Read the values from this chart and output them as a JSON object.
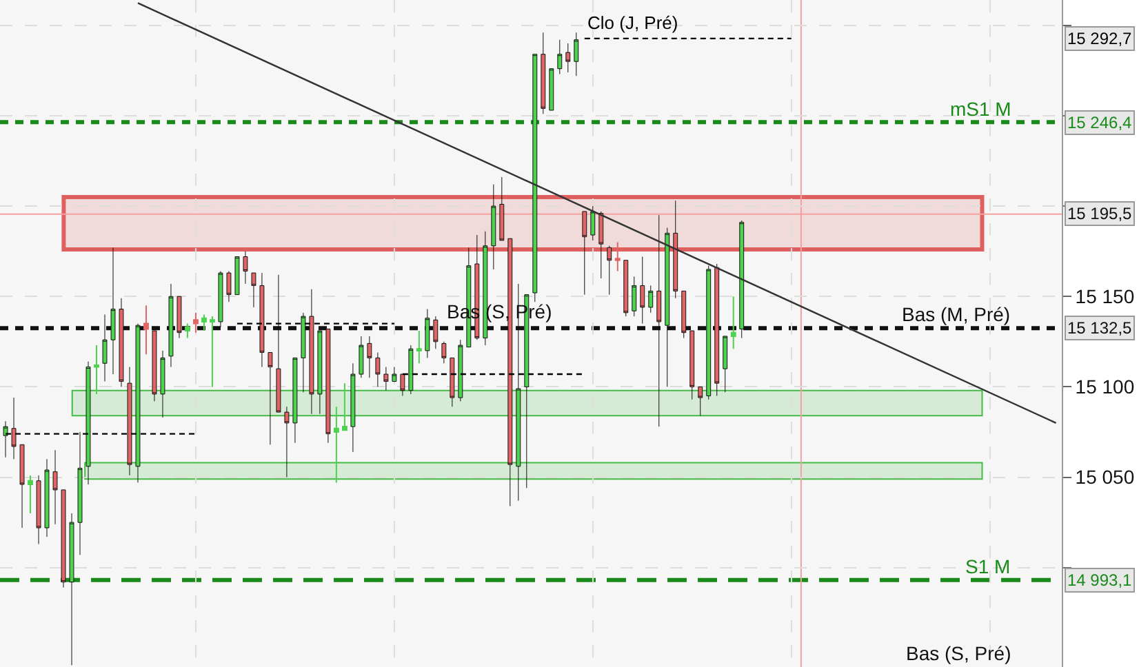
{
  "chart_data": {
    "type": "candlestick",
    "categories": [
      null,
      null,
      null,
      null,
      null,
      null,
      null,
      null,
      null,
      null,
      null,
      null,
      null,
      null,
      null,
      null,
      null,
      null,
      null,
      null,
      null,
      null,
      null,
      null,
      null,
      null,
      null,
      null,
      null,
      null,
      null,
      null,
      null,
      null,
      null,
      null,
      null,
      null,
      null,
      null,
      null,
      null,
      null,
      null,
      null,
      null,
      null,
      null,
      null,
      null,
      null,
      null,
      null,
      null,
      null,
      null,
      null,
      null,
      null,
      null,
      null,
      null,
      null,
      null,
      null,
      null,
      null,
      null,
      null,
      null,
      null,
      null,
      null,
      null,
      null,
      null,
      null,
      null,
      null,
      null,
      null,
      null,
      null,
      null,
      null,
      null,
      null,
      null,
      null,
      null,
      null,
      null,
      null,
      null,
      null,
      null,
      null,
      null,
      null,
      null,
      null,
      null,
      null,
      null,
      null,
      null,
      null,
      null,
      null,
      null,
      null,
      null,
      null,
      null,
      null,
      null,
      null,
      null,
      null,
      null,
      null,
      null,
      null,
      null,
      null,
      null,
      null,
      null
    ],
    "ohlc": [
      [
        15073,
        15081,
        15061,
        15078
      ],
      [
        15077,
        15094,
        15060,
        15067
      ],
      [
        15068,
        15068,
        15022,
        15046
      ],
      [
        15046,
        15051,
        15030,
        15048
      ],
      [
        15048,
        15051,
        15013,
        15022
      ],
      [
        15022,
        15060,
        15017,
        15054
      ],
      [
        15053,
        15065,
        15024,
        15043
      ],
      [
        15043,
        15043,
        14989,
        14992
      ],
      [
        14992,
        15030,
        14946,
        15025
      ],
      [
        15025,
        15075,
        15007,
        15055
      ],
      [
        15056,
        15114,
        15046,
        15111
      ],
      [
        15111,
        15123,
        15096,
        15112
      ],
      [
        15113,
        15140,
        15103,
        15126
      ],
      [
        15126,
        15177,
        15107,
        15143
      ],
      [
        15143,
        15149,
        15100,
        15103
      ],
      [
        15102,
        15111,
        15051,
        15057
      ],
      [
        15056,
        15135,
        15047,
        15134
      ],
      [
        15135,
        15145,
        15118,
        15132
      ],
      [
        15131,
        15131,
        15092,
        15096
      ],
      [
        15096,
        15120,
        15083,
        15116
      ],
      [
        15117,
        15157,
        15111,
        15150
      ],
      [
        15150,
        15150,
        15127,
        15130
      ],
      [
        15131,
        15135,
        15127,
        15133
      ],
      [
        15137,
        15141,
        15130,
        15135
      ],
      [
        15136,
        15140,
        15131,
        15138
      ],
      [
        15136,
        15139,
        15100,
        15137
      ],
      [
        15136,
        15164,
        15133,
        15163
      ],
      [
        15163,
        15164,
        15147,
        15151
      ],
      [
        15151,
        15172,
        15151,
        15172
      ],
      [
        15172,
        15175,
        15157,
        15164
      ],
      [
        15163,
        15163,
        15144,
        15156
      ],
      [
        15156,
        15163,
        15111,
        15119
      ],
      [
        15119,
        15119,
        15068,
        15111
      ],
      [
        15110,
        15162,
        15086,
        15086
      ],
      [
        15086,
        15089,
        15050,
        15080
      ],
      [
        15080,
        15116,
        15069,
        15116
      ],
      [
        15116,
        15141,
        15097,
        15139
      ],
      [
        15139,
        15154,
        15085,
        15096
      ],
      [
        15096,
        15131,
        15085,
        15131
      ],
      [
        15132,
        15132,
        15069,
        15074
      ],
      [
        15075,
        15089,
        15047,
        15077
      ],
      [
        15076,
        15102,
        15076,
        15078
      ],
      [
        15078,
        15113,
        15064,
        15107
      ],
      [
        15107,
        15128,
        15105,
        15123
      ],
      [
        15124,
        15128,
        15105,
        15116
      ],
      [
        15116,
        15119,
        15100,
        15107
      ],
      [
        15107,
        15111,
        15098,
        15103
      ],
      [
        15103,
        15111,
        15103,
        15107
      ],
      [
        15107,
        15107,
        15095,
        15098
      ],
      [
        15098,
        15123,
        15096,
        15121
      ],
      [
        15120,
        15131,
        15113,
        15121
      ],
      [
        15120,
        15143,
        15116,
        15138
      ],
      [
        15137,
        15139,
        15121,
        15125
      ],
      [
        15124,
        15125,
        15113,
        15116
      ],
      [
        15116,
        15116,
        15089,
        15094
      ],
      [
        15094,
        15126,
        15092,
        15123
      ],
      [
        15122,
        15177,
        15122,
        15167
      ],
      [
        15168,
        15184,
        15126,
        15127
      ],
      [
        15127,
        15186,
        15123,
        15178
      ],
      [
        15178,
        15212,
        15165,
        15200
      ],
      [
        15201,
        15216,
        15181,
        15181
      ],
      [
        15182,
        15182,
        15034,
        15057
      ],
      [
        15056,
        15157,
        15037,
        15099
      ],
      [
        15100,
        15151,
        15044,
        15151
      ],
      [
        15152,
        15284,
        15147,
        15284
      ],
      [
        15284,
        15296,
        15251,
        15254
      ],
      [
        15253,
        15276,
        15253,
        15276
      ],
      [
        15276,
        15292,
        15273,
        15284
      ],
      [
        15285,
        15290,
        15274,
        15280
      ],
      [
        15280,
        15296,
        15272,
        15292
      ],
      [
        15197,
        15197,
        15151,
        15183
      ],
      [
        15184,
        15200,
        15181,
        15197
      ],
      [
        15196,
        15197,
        15160,
        15179
      ],
      [
        15177,
        15178,
        15151,
        15170
      ],
      [
        15171,
        15180,
        15164,
        15170
      ],
      [
        15170,
        15170,
        15139,
        15141
      ],
      [
        15142,
        15161,
        15139,
        15156
      ],
      [
        15156,
        15172,
        15135,
        15144
      ],
      [
        15144,
        15156,
        15141,
        15153
      ],
      [
        15153,
        15195,
        15078,
        15136
      ],
      [
        15134,
        15188,
        15100,
        15185
      ],
      [
        15185,
        15203,
        15149,
        15153
      ],
      [
        15153,
        15153,
        15127,
        15130
      ],
      [
        15131,
        15131,
        15093,
        15100
      ],
      [
        15100,
        15100,
        15084,
        15094
      ],
      [
        15095,
        15167,
        15093,
        15165
      ],
      [
        15166,
        15168,
        15095,
        15102
      ],
      [
        15110,
        15128,
        15097,
        15128
      ],
      [
        15128,
        15150,
        15121,
        15130
      ],
      [
        15132,
        15192,
        15127,
        15191
      ],
      null,
      null,
      null,
      null,
      null,
      null,
      null,
      null,
      null,
      null,
      null,
      null,
      null,
      null,
      null,
      null,
      null,
      null,
      null,
      null,
      null,
      null,
      null,
      null,
      null,
      null,
      null,
      null,
      null,
      null,
      null,
      null,
      null,
      null,
      null,
      null,
      null,
      null
    ],
    "colors": [
      "#4fd24f",
      "#e06666",
      "#e06666",
      "#4fd24f",
      "#e06666",
      "#4fd24f",
      "#e06666",
      "#e06666",
      "#4fd24f",
      "#4fd24f",
      "#4fd24f",
      "#4fd24f",
      "#4fd24f",
      "#4fd24f",
      "#e06666",
      "#e06666",
      "#4fd24f",
      "#e06666",
      "#e06666",
      "#4fd24f",
      "#4fd24f",
      "#e06666",
      "#4fd24f",
      "#e06666",
      "#4fd24f",
      "#4fd24f",
      "#4fd24f",
      "#e06666",
      "#4fd24f",
      "#e06666",
      "#e06666",
      "#e06666",
      "#e06666",
      "#e06666",
      "#e06666",
      "#4fd24f",
      "#4fd24f",
      "#e06666",
      "#4fd24f",
      "#e06666",
      "#4fd24f",
      "#4fd24f",
      "#4fd24f",
      "#4fd24f",
      "#e06666",
      "#e06666",
      "#e06666",
      "#4fd24f",
      "#e06666",
      "#4fd24f",
      "#4fd24f",
      "#4fd24f",
      "#e06666",
      "#e06666",
      "#e06666",
      "#4fd24f",
      "#4fd24f",
      "#e06666",
      "#4fd24f",
      "#4fd24f",
      "#e06666",
      "#e06666",
      "#4fd24f",
      "#4fd24f",
      "#4fd24f",
      "#e06666",
      "#4fd24f",
      "#4fd24f",
      "#e06666",
      "#4fd24f",
      "#e06666",
      "#4fd24f",
      "#e06666",
      "#e06666",
      "#e06666",
      "#e06666",
      "#4fd24f",
      "#e06666",
      "#4fd24f",
      "#e06666",
      "#4fd24f",
      "#e06666",
      "#e06666",
      "#e06666",
      "#e06666",
      "#4fd24f",
      "#e06666",
      "#4fd24f",
      "#4fd24f",
      "#4fd24f",
      null,
      null,
      null,
      null,
      null,
      null,
      null,
      null,
      null,
      null,
      null,
      null,
      null,
      null,
      null,
      null,
      null,
      null,
      null,
      null,
      null,
      null,
      null,
      null,
      null,
      null,
      null,
      null,
      null,
      null,
      null,
      null,
      null,
      null,
      null,
      null,
      null,
      null
    ],
    "ylim": [
      14945,
      15314
    ],
    "yticks": [
      {
        "value": 15000,
        "label": null
      },
      {
        "value": 15050,
        "label": "15 050"
      },
      {
        "value": 15100,
        "label": "15 100"
      },
      {
        "value": 15150,
        "label": "15 150"
      },
      {
        "value": 15200,
        "label": null
      },
      {
        "value": 15250,
        "label": null
      },
      {
        "value": 15300,
        "label": null
      }
    ],
    "tick_labels": "y",
    "grid": true,
    "series": [
      {
        "type": "line",
        "values": [
          null,
          null,
          null,
          null,
          null,
          null,
          null,
          null,
          null,
          null,
          null,
          null,
          null,
          null,
          null,
          null,
          15312.3,
          null,
          null,
          null,
          null,
          null,
          null,
          null,
          null,
          null,
          null,
          null,
          null,
          null,
          null,
          null,
          null,
          null,
          null,
          null,
          null,
          null,
          null,
          null,
          null,
          null,
          null,
          null,
          null,
          null,
          null,
          null,
          null,
          null,
          null,
          null,
          null,
          null,
          null,
          null,
          null,
          null,
          null,
          null,
          null,
          null,
          null,
          null,
          null,
          null,
          null,
          null,
          null,
          null,
          null,
          null,
          null,
          null,
          null,
          null,
          null,
          null,
          null,
          null,
          null,
          null,
          null,
          null,
          null,
          null,
          null,
          null,
          null,
          null,
          null,
          null,
          null,
          null,
          null,
          null,
          null,
          null,
          null,
          null,
          null,
          null,
          null,
          null,
          null,
          null,
          null,
          null,
          null,
          null,
          null,
          null,
          null,
          null,
          null,
          null,
          null,
          null,
          null,
          null,
          null,
          null,
          null,
          null,
          null,
          null,
          null,
          15080
        ],
        "color": "#333333",
        "line_style": "solid"
      },
      {
        "type": "line",
        "values": [
          15074,
          null,
          null,
          null,
          null,
          null,
          null,
          null,
          null,
          null,
          null,
          null,
          null,
          null,
          null,
          null,
          null,
          null,
          null,
          null,
          null,
          null,
          null,
          15074,
          null,
          null,
          null,
          null,
          null,
          null,
          null,
          null,
          null,
          null,
          null,
          null,
          null,
          null,
          null,
          null,
          null,
          null,
          null,
          null,
          null,
          null,
          null,
          null,
          null,
          null,
          null,
          null,
          null,
          null,
          null,
          null,
          null,
          null,
          null,
          null,
          null,
          null,
          null,
          null,
          null,
          null,
          null,
          null,
          null,
          null,
          null,
          null,
          null,
          null,
          null,
          null,
          null,
          null,
          null,
          null,
          null,
          null,
          null,
          null,
          null,
          null,
          null,
          null,
          null,
          null,
          null,
          null,
          null,
          null,
          null,
          null,
          null,
          null,
          null,
          null,
          null,
          null,
          null,
          null,
          null,
          null,
          null,
          null,
          null,
          null,
          null,
          null,
          null,
          null,
          null,
          null,
          null,
          null,
          null,
          null,
          null,
          null,
          null,
          null,
          null,
          null,
          null,
          null
        ],
        "color": "#000000",
        "line_style": "dashed"
      },
      {
        "type": "line",
        "values": [
          null,
          null,
          null,
          null,
          null,
          null,
          null,
          null,
          null,
          null,
          null,
          null,
          null,
          null,
          null,
          null,
          null,
          null,
          null,
          null,
          null,
          null,
          null,
          null,
          null,
          null,
          null,
          null,
          15135,
          null,
          null,
          null,
          null,
          null,
          null,
          null,
          null,
          null,
          null,
          null,
          null,
          null,
          null,
          null,
          null,
          null,
          null,
          15135,
          null,
          null,
          null,
          null,
          null,
          null,
          null,
          null,
          null,
          null,
          null,
          null,
          null,
          null,
          null,
          null,
          null,
          null,
          null,
          null,
          null,
          null,
          null,
          null,
          null,
          null,
          null,
          null,
          null,
          null,
          null,
          null,
          null,
          null,
          null,
          null,
          null,
          null,
          null,
          null,
          null,
          null,
          null,
          null,
          null,
          null,
          null,
          null,
          null,
          null,
          null,
          null,
          null,
          null,
          null,
          null,
          null,
          null,
          null,
          null,
          null,
          null,
          null,
          null,
          null,
          null,
          null,
          null,
          null,
          null,
          null,
          null,
          null,
          null,
          null,
          null,
          null,
          null,
          null,
          null
        ],
        "color": "#000000",
        "line_style": "dashed"
      },
      {
        "type": "line",
        "values": [
          null,
          null,
          null,
          null,
          null,
          null,
          null,
          null,
          null,
          null,
          null,
          null,
          null,
          null,
          null,
          null,
          null,
          null,
          null,
          null,
          null,
          null,
          null,
          null,
          null,
          null,
          null,
          null,
          null,
          null,
          null,
          null,
          null,
          null,
          null,
          null,
          null,
          null,
          null,
          null,
          null,
          null,
          null,
          null,
          null,
          null,
          null,
          null,
          15107,
          null,
          null,
          null,
          null,
          null,
          null,
          null,
          null,
          null,
          null,
          null,
          null,
          null,
          null,
          null,
          null,
          null,
          null,
          null,
          null,
          null,
          15107,
          null,
          null,
          null,
          null,
          null,
          null,
          null,
          null,
          null,
          null,
          null,
          null,
          null,
          null,
          null,
          null,
          null,
          null,
          null,
          null,
          null,
          null,
          null,
          null,
          null,
          null,
          null,
          null,
          null,
          null,
          null,
          null,
          null,
          null,
          null,
          null,
          null,
          null,
          null,
          null,
          null,
          null,
          null,
          null,
          null,
          null,
          null,
          null,
          null,
          null,
          null,
          null,
          null,
          null,
          null,
          null,
          null
        ],
        "color": "#000000",
        "line_style": "dashed"
      },
      {
        "type": "line",
        "name": "Clo (J, Pré)",
        "values": [
          null,
          null,
          null,
          null,
          null,
          null,
          null,
          null,
          null,
          null,
          null,
          null,
          null,
          null,
          null,
          null,
          null,
          null,
          null,
          null,
          null,
          null,
          null,
          null,
          null,
          null,
          null,
          null,
          null,
          null,
          null,
          null,
          null,
          null,
          null,
          null,
          null,
          null,
          null,
          null,
          null,
          null,
          null,
          null,
          null,
          null,
          null,
          null,
          null,
          null,
          null,
          null,
          null,
          null,
          null,
          null,
          null,
          null,
          null,
          null,
          null,
          null,
          null,
          null,
          null,
          null,
          null,
          null,
          null,
          null,
          15292.7,
          null,
          null,
          null,
          null,
          null,
          null,
          null,
          null,
          null,
          null,
          null,
          null,
          null,
          null,
          null,
          null,
          null,
          null,
          null,
          null,
          null,
          null,
          null,
          null,
          15292.7,
          null,
          null,
          null,
          null,
          null,
          null,
          null,
          null,
          null,
          null,
          null,
          null,
          null,
          null,
          null,
          null,
          null,
          null,
          null,
          null,
          null,
          null,
          null,
          null,
          null,
          null,
          null,
          null,
          null,
          null,
          null,
          null
        ],
        "color": "#000000",
        "line_style": "dashed"
      }
    ],
    "ref_lines": [
      {
        "axis": "y",
        "value": 15246.4,
        "label": "mS1 M",
        "color": "#1a8a1a",
        "line_style": "dotted"
      },
      {
        "axis": "y",
        "value": 15132.5,
        "label": "Bas (M, Pré)",
        "color": "#111111",
        "line_style": "dotted"
      },
      {
        "axis": "y",
        "value": 14993.1,
        "label": "S1 M",
        "color": "#1a8a1a",
        "line_style": "dashed"
      },
      {
        "axis": "y",
        "value": 15195.5,
        "label": null,
        "color": "#f4a0a0",
        "line_style": "solid"
      },
      {
        "axis": "x",
        "value": null,
        "label": null,
        "color": "#f4a0a0",
        "line_style": "solid"
      }
    ],
    "bands": [
      {
        "axis": "y",
        "from": 15176,
        "to": 15205,
        "label": null,
        "color": "#e06060"
      },
      {
        "axis": "y",
        "from": 15084,
        "to": 15098,
        "label": null,
        "color": "#44bb44"
      },
      {
        "axis": "y",
        "from": 15049,
        "to": 15058,
        "label": null,
        "color": "#44bb44"
      }
    ],
    "annotations": [
      "Bas (S, Pré)",
      "Bas (S, Pré)",
      "15 292,7",
      "15 246,4",
      "15 132,5",
      "14 993,1",
      "15 195,5"
    ]
  }
}
